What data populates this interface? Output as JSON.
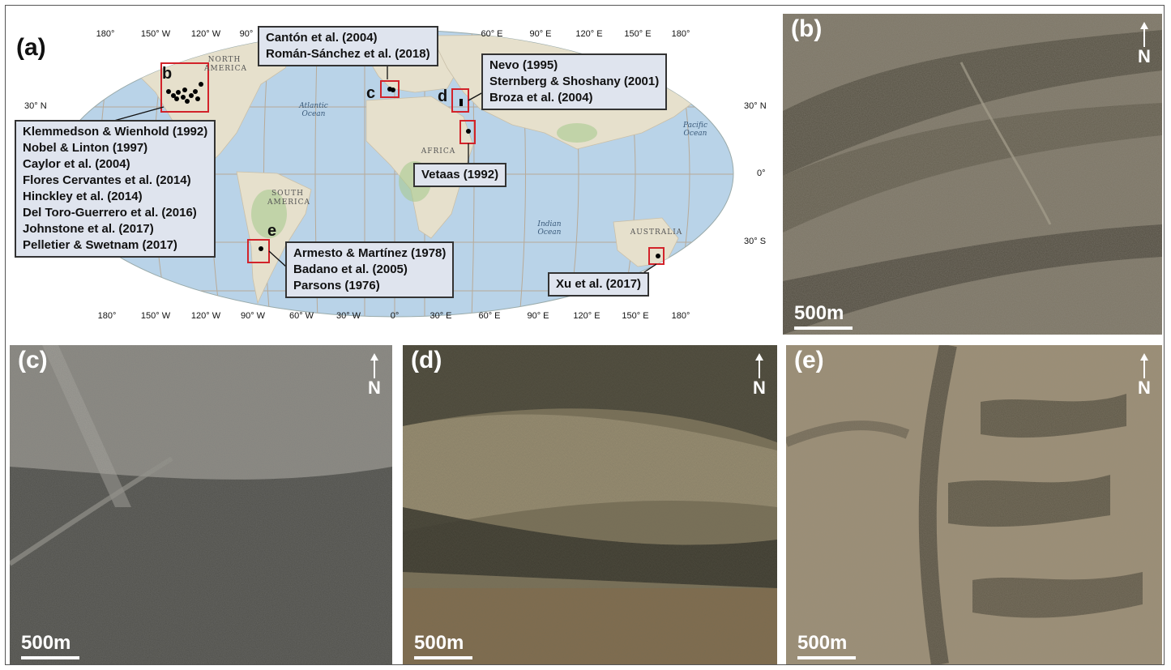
{
  "panels": {
    "a": {
      "label": "(a)"
    },
    "b": {
      "label": "(b)",
      "north": "N",
      "scale": "500m"
    },
    "c": {
      "label": "(c)",
      "north": "N",
      "scale": "500m"
    },
    "d": {
      "label": "(d)",
      "north": "N",
      "scale": "500m"
    },
    "e": {
      "label": "(e)",
      "north": "N",
      "scale": "500m"
    }
  },
  "map": {
    "lon_top": [
      "180°",
      "150° W",
      "120° W",
      "90°",
      "60° E",
      "90° E",
      "120° E",
      "150° E",
      "180°"
    ],
    "lon_bottom": [
      "180°",
      "150° W",
      "120° W",
      "90° W",
      "60° W",
      "30° W",
      "0°",
      "30° E",
      "60° E",
      "90° E",
      "120° E",
      "150° E",
      "180°"
    ],
    "lat_left": [
      "30° N"
    ],
    "lat_right": [
      "30° N",
      "0°",
      "30° S"
    ],
    "place_labels": {
      "north_america": "NORTH AMERICA",
      "south_america": "SOUTH AMERICA",
      "africa": "AFRICA",
      "australia": "AUSTRALIA",
      "atlantic": "Atlantic Ocean",
      "pacific": "Pacific Ocean",
      "indian": "Indian Ocean"
    },
    "site_letters": [
      "b",
      "c",
      "d",
      "e"
    ],
    "callouts": {
      "b": [
        "Klemmedson & Wienhold (1992)",
        "Nobel & Linton (1997)",
        "Caylor et al. (2004)",
        "Flores Cervantes et al. (2014)",
        "Hinckley et al. (2014)",
        "Del Toro-Guerrero et al. (2016)",
        "Johnstone et al. (2017)",
        "Pelletier & Swetnam (2017)"
      ],
      "c": [
        "Cantón et al. (2004)",
        "Román-Sánchez et al. (2018)"
      ],
      "d": [
        "Nevo (1995)",
        "Sternberg & Shoshany (2001)",
        "Broza et al. (2004)"
      ],
      "vetaas": [
        "Vetaas (1992)"
      ],
      "e": [
        "Armesto & Martínez (1978)",
        "Badano et al. (2005)",
        "Parsons (1976)"
      ],
      "xu": [
        "Xu et al. (2017)"
      ]
    },
    "colors": {
      "ocean": "#b9d3e8",
      "land": "#e9e4d6",
      "highlight": "#d2232a",
      "callout_bg": "#dfe4ee"
    }
  }
}
